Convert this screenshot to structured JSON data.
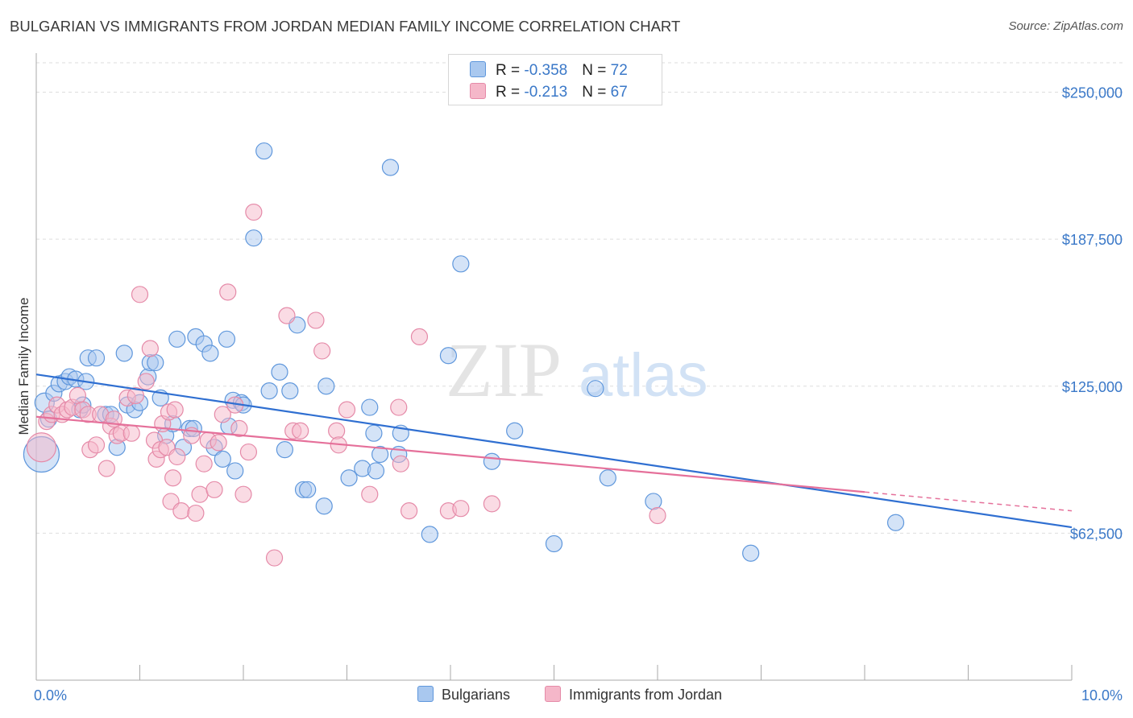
{
  "title": "BULGARIAN VS IMMIGRANTS FROM JORDAN MEDIAN FAMILY INCOME CORRELATION CHART",
  "source": "Source: ZipAtlas.com",
  "watermark": {
    "part1": "ZIP",
    "part2": "atlas"
  },
  "legend": {
    "rows": [
      {
        "label_r": "R = ",
        "r": "-0.358",
        "label_n": "N = ",
        "n": "72",
        "color": "#a9c8ef"
      },
      {
        "label_r": "R = ",
        "r": "-0.213",
        "label_n": "N = ",
        "n": "67",
        "color": "#f5b7c9"
      }
    ]
  },
  "bottom_legend": {
    "items": [
      "Bulgarians",
      "Immigrants from Jordan"
    ]
  },
  "chart_data": {
    "type": "scatter",
    "title": "BULGARIAN VS IMMIGRANTS FROM JORDAN MEDIAN FAMILY INCOME CORRELATION CHART",
    "xlabel": "",
    "ylabel": "Median Family Income",
    "xlim": [
      0,
      10
    ],
    "ylim": [
      0,
      262500
    ],
    "x_tick_labels": [
      "0.0%",
      "10.0%"
    ],
    "y_ticks": [
      62500,
      125000,
      187500,
      250000
    ],
    "y_tick_labels": [
      "$62,500",
      "$125,000",
      "$187,500",
      "$250,000"
    ],
    "grid": true,
    "legend_position": "top-center",
    "series": [
      {
        "name": "Bulgarians",
        "color": "#a9c8ef",
        "stroke": "#5f97dc",
        "trend_color": "#2f6fd1",
        "trend": {
          "x": [
            0,
            10
          ],
          "y": [
            130000,
            65000
          ]
        },
        "points": [
          [
            0.05,
            96000,
            22
          ],
          [
            0.08,
            118000,
            12
          ],
          [
            0.12,
            111000,
            10
          ],
          [
            0.17,
            122000,
            10
          ],
          [
            0.22,
            126000,
            10
          ],
          [
            0.28,
            127000,
            10
          ],
          [
            0.32,
            129000,
            10
          ],
          [
            0.38,
            128000,
            10
          ],
          [
            0.42,
            115000,
            10
          ],
          [
            0.48,
            127000,
            10
          ],
          [
            0.5,
            137000,
            10
          ],
          [
            0.58,
            137000,
            10
          ],
          [
            0.67,
            113000,
            10
          ],
          [
            0.72,
            113000,
            10
          ],
          [
            0.78,
            99000,
            10
          ],
          [
            0.85,
            139000,
            10
          ],
          [
            0.88,
            117000,
            10
          ],
          [
            0.95,
            115000,
            10
          ],
          [
            1.0,
            118000,
            10
          ],
          [
            1.08,
            129000,
            10
          ],
          [
            1.1,
            135000,
            10
          ],
          [
            1.15,
            135000,
            10
          ],
          [
            1.2,
            120000,
            10
          ],
          [
            1.25,
            104000,
            10
          ],
          [
            1.32,
            109000,
            10
          ],
          [
            1.36,
            145000,
            10
          ],
          [
            1.42,
            99000,
            10
          ],
          [
            1.48,
            107000,
            10
          ],
          [
            1.52,
            107000,
            10
          ],
          [
            1.54,
            146000,
            10
          ],
          [
            1.62,
            143000,
            10
          ],
          [
            1.68,
            139000,
            10
          ],
          [
            1.72,
            99000,
            10
          ],
          [
            1.8,
            94000,
            10
          ],
          [
            1.84,
            145000,
            10
          ],
          [
            1.86,
            108000,
            10
          ],
          [
            1.9,
            119000,
            10
          ],
          [
            1.92,
            89000,
            10
          ],
          [
            1.98,
            118000,
            10
          ],
          [
            2.0,
            117000,
            10
          ],
          [
            2.1,
            188000,
            10
          ],
          [
            2.2,
            225000,
            10
          ],
          [
            2.25,
            123000,
            10
          ],
          [
            2.35,
            131000,
            10
          ],
          [
            2.4,
            98000,
            10
          ],
          [
            2.45,
            123000,
            10
          ],
          [
            2.52,
            151000,
            10
          ],
          [
            2.58,
            81000,
            10
          ],
          [
            2.62,
            81000,
            10
          ],
          [
            2.78,
            74000,
            10
          ],
          [
            2.8,
            125000,
            10
          ],
          [
            3.02,
            86000,
            10
          ],
          [
            3.15,
            90000,
            10
          ],
          [
            3.22,
            116000,
            10
          ],
          [
            3.26,
            105000,
            10
          ],
          [
            3.28,
            89000,
            10
          ],
          [
            3.32,
            96000,
            10
          ],
          [
            3.42,
            218000,
            10
          ],
          [
            3.5,
            96000,
            10
          ],
          [
            3.52,
            105000,
            10
          ],
          [
            3.8,
            62000,
            10
          ],
          [
            3.98,
            138000,
            10
          ],
          [
            4.1,
            177000,
            10
          ],
          [
            4.4,
            93000,
            10
          ],
          [
            4.62,
            106000,
            10
          ],
          [
            5.0,
            58000,
            10
          ],
          [
            5.4,
            124000,
            10
          ],
          [
            5.52,
            86000,
            10
          ],
          [
            5.96,
            76000,
            10
          ],
          [
            6.9,
            54000,
            10
          ],
          [
            8.3,
            67000,
            10
          ],
          [
            0.45,
            117000,
            10
          ]
        ]
      },
      {
        "name": "Immigrants from Jordan",
        "color": "#f5b7c9",
        "stroke": "#e58aa8",
        "trend_color": "#e5709a",
        "trend": {
          "x": [
            0,
            8.0
          ],
          "y": [
            112000,
            80000
          ],
          "dash_x": [
            8.0,
            10
          ],
          "dash_y": [
            80000,
            72000
          ]
        },
        "points": [
          [
            0.05,
            99000,
            18
          ],
          [
            0.1,
            110000,
            10
          ],
          [
            0.15,
            113000,
            10
          ],
          [
            0.2,
            117000,
            10
          ],
          [
            0.25,
            113000,
            10
          ],
          [
            0.3,
            115000,
            10
          ],
          [
            0.35,
            116000,
            10
          ],
          [
            0.4,
            121000,
            10
          ],
          [
            0.45,
            115000,
            10
          ],
          [
            0.5,
            113000,
            10
          ],
          [
            0.52,
            98000,
            10
          ],
          [
            0.58,
            100000,
            10
          ],
          [
            0.62,
            113000,
            10
          ],
          [
            0.68,
            90000,
            10
          ],
          [
            0.72,
            108000,
            10
          ],
          [
            0.75,
            111000,
            10
          ],
          [
            0.78,
            104000,
            10
          ],
          [
            0.82,
            105000,
            10
          ],
          [
            0.88,
            120000,
            10
          ],
          [
            0.92,
            105000,
            10
          ],
          [
            0.96,
            121000,
            10
          ],
          [
            1.0,
            164000,
            10
          ],
          [
            1.06,
            127000,
            10
          ],
          [
            1.1,
            141000,
            10
          ],
          [
            1.14,
            102000,
            10
          ],
          [
            1.16,
            94000,
            10
          ],
          [
            1.2,
            98000,
            10
          ],
          [
            1.22,
            109000,
            10
          ],
          [
            1.26,
            99000,
            10
          ],
          [
            1.28,
            114000,
            10
          ],
          [
            1.3,
            76000,
            10
          ],
          [
            1.32,
            86000,
            10
          ],
          [
            1.34,
            115000,
            10
          ],
          [
            1.36,
            95000,
            10
          ],
          [
            1.4,
            72000,
            10
          ],
          [
            1.5,
            104000,
            10
          ],
          [
            1.54,
            71000,
            10
          ],
          [
            1.58,
            79000,
            10
          ],
          [
            1.62,
            92000,
            10
          ],
          [
            1.66,
            102000,
            10
          ],
          [
            1.72,
            81000,
            10
          ],
          [
            1.76,
            101000,
            10
          ],
          [
            1.8,
            113000,
            10
          ],
          [
            1.85,
            165000,
            10
          ],
          [
            1.92,
            117000,
            10
          ],
          [
            1.96,
            107000,
            10
          ],
          [
            2.0,
            79000,
            10
          ],
          [
            2.05,
            97000,
            10
          ],
          [
            2.1,
            199000,
            10
          ],
          [
            2.3,
            52000,
            10
          ],
          [
            2.42,
            155000,
            10
          ],
          [
            2.48,
            106000,
            10
          ],
          [
            2.55,
            106000,
            10
          ],
          [
            2.7,
            153000,
            10
          ],
          [
            2.76,
            140000,
            10
          ],
          [
            2.9,
            106000,
            10
          ],
          [
            2.92,
            100000,
            10
          ],
          [
            3.0,
            115000,
            10
          ],
          [
            3.22,
            79000,
            10
          ],
          [
            3.5,
            116000,
            10
          ],
          [
            3.52,
            92000,
            10
          ],
          [
            3.6,
            72000,
            10
          ],
          [
            3.7,
            146000,
            10
          ],
          [
            3.98,
            72000,
            10
          ],
          [
            4.1,
            73000,
            10
          ],
          [
            4.4,
            75000,
            10
          ],
          [
            6.0,
            70000,
            10
          ]
        ]
      }
    ]
  }
}
